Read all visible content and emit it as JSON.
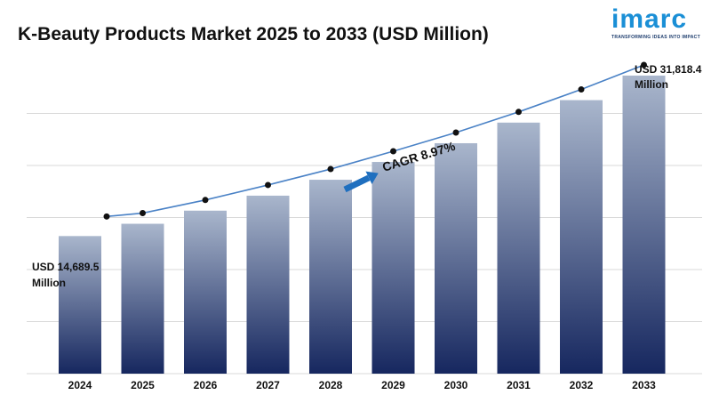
{
  "header": {
    "title": "K-Beauty Products Market 2025 to 2033 (USD Million)"
  },
  "logo": {
    "wordmark": "imarc",
    "tagline": "TRANSFORMING IDEAS INTO IMPACT",
    "color": "#1a8fd6"
  },
  "chart_data": {
    "type": "bar",
    "title": "K-Beauty Products Market 2025 to 2033 (USD Million)",
    "xlabel": "",
    "ylabel": "",
    "categories": [
      "2024",
      "2025",
      "2026",
      "2027",
      "2028",
      "2029",
      "2030",
      "2031",
      "2032",
      "2033"
    ],
    "values": [
      14689.5,
      16000,
      17400,
      19000,
      20700,
      22600,
      24600,
      26800,
      29200,
      31818.4
    ],
    "ylim": [
      0,
      34000
    ],
    "grid": true,
    "legend": "none",
    "trend_line": true,
    "annotations": {
      "start_value": "USD 14,689.5",
      "start_unit": "Million",
      "end_value": "USD 31,818.4",
      "end_unit": "Million",
      "cagr": "CAGR 8.97%"
    },
    "colors": {
      "bar_top": "#a9b6cc",
      "bar_bottom": "#16275f",
      "line": "#4a82c6",
      "marker": "#111111",
      "arrow": "#1f6fbf",
      "grid": "#d9d9d9"
    }
  }
}
